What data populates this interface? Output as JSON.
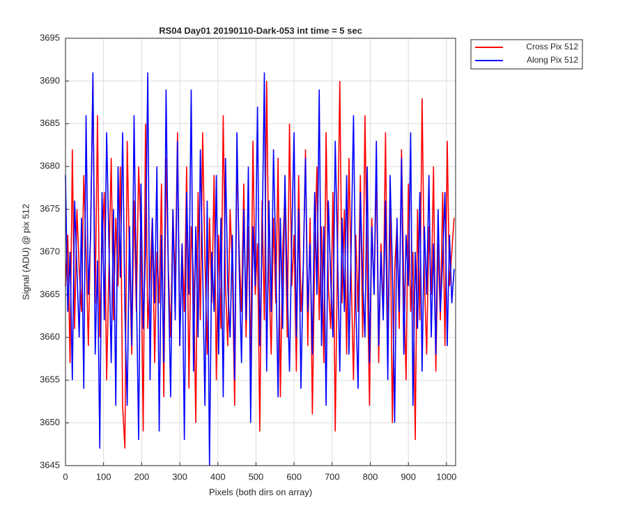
{
  "chart_data": {
    "type": "line",
    "title": "RS04 Day01 20190110-Dark-053 int time = 5 sec",
    "xlabel": "Pixels (both dirs on array)",
    "ylabel": "Signal (ADU) @ pix 512",
    "xlim": [
      0,
      1024
    ],
    "xticks": [
      0,
      100,
      200,
      300,
      400,
      500,
      600,
      700,
      800,
      900,
      1000
    ],
    "ylim": [
      3645,
      3695
    ],
    "yticks": [
      3645,
      3650,
      3655,
      3660,
      3665,
      3670,
      3675,
      3680,
      3685,
      3690,
      3695
    ],
    "grid": true,
    "legend": "northeastoutside",
    "x": [
      0,
      6,
      12,
      18,
      24,
      30,
      36,
      42,
      48,
      54,
      60,
      66,
      72,
      78,
      84,
      90,
      96,
      102,
      108,
      114,
      120,
      126,
      132,
      138,
      144,
      150,
      156,
      162,
      168,
      174,
      180,
      186,
      192,
      198,
      204,
      210,
      216,
      222,
      228,
      234,
      240,
      246,
      252,
      258,
      264,
      270,
      276,
      282,
      288,
      294,
      300,
      306,
      312,
      318,
      324,
      330,
      336,
      342,
      348,
      354,
      360,
      366,
      372,
      378,
      384,
      390,
      396,
      402,
      408,
      414,
      420,
      426,
      432,
      438,
      444,
      450,
      456,
      462,
      468,
      474,
      480,
      486,
      492,
      498,
      504,
      510,
      516,
      522,
      528,
      534,
      540,
      546,
      552,
      558,
      564,
      570,
      576,
      582,
      588,
      594,
      600,
      606,
      612,
      618,
      624,
      630,
      636,
      642,
      648,
      654,
      660,
      666,
      672,
      678,
      684,
      690,
      696,
      702,
      708,
      714,
      720,
      726,
      732,
      738,
      744,
      750,
      756,
      762,
      768,
      774,
      780,
      786,
      792,
      798,
      804,
      810,
      816,
      822,
      828,
      834,
      840,
      846,
      852,
      858,
      864,
      870,
      876,
      882,
      888,
      894,
      900,
      906,
      912,
      918,
      924,
      930,
      936,
      942,
      948,
      954,
      960,
      966,
      972,
      978,
      984,
      990,
      996,
      1002,
      1008,
      1014,
      1020
    ],
    "series": [
      {
        "name": "Cross Pix 512",
        "color": "#ff0000",
        "values": [
          3666,
          3672,
          3657,
          3682,
          3661,
          3675,
          3668,
          3663,
          3679,
          3670,
          3659,
          3673,
          3690,
          3664,
          3686,
          3660,
          3671,
          3677,
          3655,
          3668,
          3681,
          3662,
          3674,
          3666,
          3680,
          3652,
          3647,
          3683,
          3669,
          3658,
          3676,
          3663,
          3680,
          3672,
          3649,
          3685,
          3661,
          3667,
          3674,
          3657,
          3670,
          3664,
          3678,
          3653,
          3681,
          3668,
          3660,
          3675,
          3666,
          3684,
          3659,
          3671,
          3663,
          3680,
          3654,
          3673,
          3667,
          3650,
          3677,
          3662,
          3684,
          3669,
          3658,
          3674,
          3664,
          3679,
          3655,
          3672,
          3661,
          3686,
          3666,
          3659,
          3675,
          3668,
          3652,
          3681,
          3670,
          3663,
          3678,
          3660,
          3673,
          3657,
          3683,
          3665,
          3671,
          3649,
          3676,
          3662,
          3690,
          3667,
          3658,
          3674,
          3664,
          3681,
          3653,
          3670,
          3677,
          3660,
          3685,
          3666,
          3672,
          3656,
          3679,
          3663,
          3668,
          3682,
          3659,
          3674,
          3651,
          3669,
          3680,
          3662,
          3673,
          3657,
          3684,
          3666,
          3661,
          3677,
          3649,
          3670,
          3690,
          3664,
          3675,
          3658,
          3681,
          3667,
          3655,
          3672,
          3663,
          3679,
          3660,
          3686,
          3668,
          3652,
          3674,
          3665,
          3680,
          3657,
          3671,
          3663,
          3684,
          3659,
          3676,
          3650,
          3668,
          3673,
          3661,
          3682,
          3666,
          3655,
          3678,
          3663,
          3670,
          3648,
          3675,
          3662,
          3688,
          3667,
          3658,
          3673,
          3665,
          3680,
          3656,
          3671,
          3662,
          3677,
          3659,
          3683,
          3666,
          3670,
          3674
        ]
      },
      {
        "name": "Along Pix 512",
        "color": "#0000ff",
        "values": [
          3679,
          3663,
          3670,
          3655,
          3676,
          3668,
          3660,
          3674,
          3654,
          3686,
          3665,
          3672,
          3691,
          3658,
          3669,
          3647,
          3677,
          3662,
          3684,
          3671,
          3657,
          3675,
          3652,
          3680,
          3667,
          3684,
          3663,
          3652,
          3673,
          3659,
          3686,
          3666,
          3648,
          3678,
          3661,
          3670,
          3691,
          3655,
          3674,
          3664,
          3680,
          3649,
          3672,
          3657,
          3689,
          3667,
          3653,
          3675,
          3662,
          3683,
          3659,
          3671,
          3648,
          3677,
          3665,
          3689,
          3656,
          3673,
          3660,
          3682,
          3668,
          3652,
          3676,
          3645,
          3670,
          3663,
          3679,
          3658,
          3674,
          3653,
          3681,
          3666,
          3660,
          3672,
          3655,
          3684,
          3668,
          3657,
          3675,
          3662,
          3680,
          3650,
          3673,
          3666,
          3687,
          3659,
          3671,
          3691,
          3656,
          3676,
          3663,
          3682,
          3669,
          3653,
          3674,
          3661,
          3679,
          3666,
          3656,
          3672,
          3684,
          3660,
          3675,
          3654,
          3668,
          3681,
          3663,
          3671,
          3658,
          3677,
          3665,
          3689,
          3659,
          3673,
          3652,
          3676,
          3667,
          3660,
          3683,
          3670,
          3656,
          3674,
          3663,
          3679,
          3658,
          3671,
          3686,
          3664,
          3654,
          3677,
          3667,
          3660,
          3680,
          3657,
          3673,
          3665,
          3683,
          3659,
          3670,
          3662,
          3676,
          3655,
          3679,
          3668,
          3650,
          3674,
          3663,
          3681,
          3658,
          3672,
          3666,
          3684,
          3652,
          3670,
          3661,
          3677,
          3656,
          3673,
          3665,
          3679,
          3660,
          3671,
          3658,
          3675,
          3663,
          3669,
          3677,
          3659,
          3672,
          3664,
          3668
        ]
      }
    ]
  }
}
